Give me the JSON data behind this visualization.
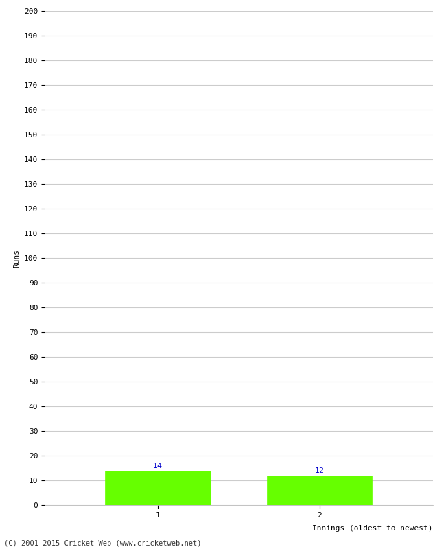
{
  "categories": [
    "1",
    "2"
  ],
  "values": [
    14,
    12
  ],
  "bar_color": "#66ff00",
  "bar_edge_color": "#66ff00",
  "xlabel": "Innings (oldest to newest)",
  "ylabel": "Runs",
  "ylim": [
    0,
    200
  ],
  "yticks": [
    0,
    10,
    20,
    30,
    40,
    50,
    60,
    70,
    80,
    90,
    100,
    110,
    120,
    130,
    140,
    150,
    160,
    170,
    180,
    190,
    200
  ],
  "label_color": "#0000cc",
  "label_fontsize": 8,
  "footer": "(C) 2001-2015 Cricket Web (www.cricketweb.net)",
  "background_color": "#ffffff",
  "grid_color": "#cccccc",
  "bar_width": 0.65,
  "figsize": [
    6.5,
    8.0
  ],
  "dpi": 100
}
